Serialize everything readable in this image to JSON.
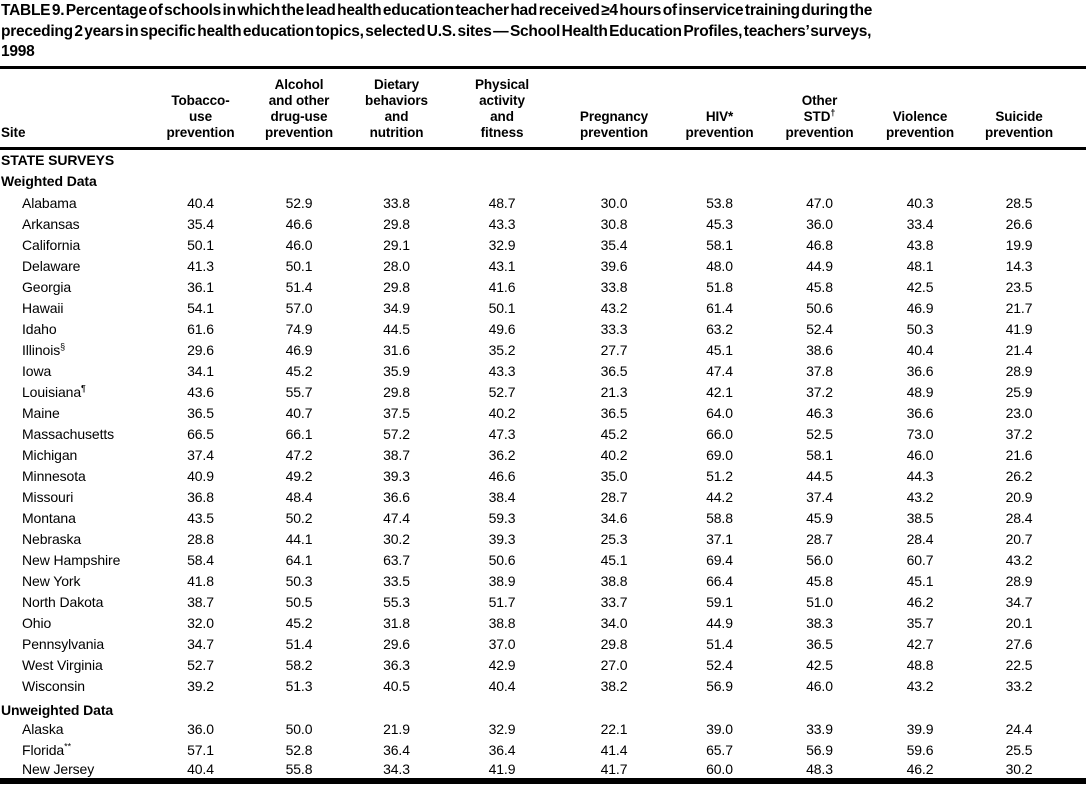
{
  "title_lines": [
    "TABLE 9. Percentage of schools in which the lead health education teacher had received ≥4 hours of inservice training during the",
    "preceding 2 years in specific health education topics, selected U.S. sites — School Health Education Profiles, teachers’ surveys,",
    "1998"
  ],
  "table": {
    "site_header": "Site",
    "columns": [
      {
        "lines": [
          "Tobacco-",
          "use",
          "prevention"
        ]
      },
      {
        "lines": [
          "Alcohol",
          "and other",
          "drug-use",
          "prevention"
        ]
      },
      {
        "lines": [
          "Dietary",
          "behaviors",
          "and",
          "nutrition"
        ]
      },
      {
        "lines": [
          "Physical",
          "activity",
          "and",
          "fitness"
        ]
      },
      {
        "lines": [
          "Pregnancy",
          "prevention"
        ]
      },
      {
        "lines": [
          "HIV*",
          "prevention"
        ]
      },
      {
        "lines": [
          "Other",
          "STD",
          "prevention"
        ],
        "sup": "†",
        "sup_line": 1
      },
      {
        "lines": [
          "Violence",
          "prevention"
        ]
      },
      {
        "lines": [
          "Suicide",
          "prevention"
        ]
      }
    ],
    "section_heading": "STATE SURVEYS",
    "groups": [
      {
        "heading": "Weighted Data",
        "rows": [
          {
            "site": "Alabama",
            "values": [
              "40.4",
              "52.9",
              "33.8",
              "48.7",
              "30.0",
              "53.8",
              "47.0",
              "40.3",
              "28.5"
            ]
          },
          {
            "site": "Arkansas",
            "values": [
              "35.4",
              "46.6",
              "29.8",
              "43.3",
              "30.8",
              "45.3",
              "36.0",
              "33.4",
              "26.6"
            ]
          },
          {
            "site": "California",
            "values": [
              "50.1",
              "46.0",
              "29.1",
              "32.9",
              "35.4",
              "58.1",
              "46.8",
              "43.8",
              "19.9"
            ]
          },
          {
            "site": "Delaware",
            "values": [
              "41.3",
              "50.1",
              "28.0",
              "43.1",
              "39.6",
              "48.0",
              "44.9",
              "48.1",
              "14.3"
            ]
          },
          {
            "site": "Georgia",
            "values": [
              "36.1",
              "51.4",
              "29.8",
              "41.6",
              "33.8",
              "51.8",
              "45.8",
              "42.5",
              "23.5"
            ]
          },
          {
            "site": "Hawaii",
            "values": [
              "54.1",
              "57.0",
              "34.9",
              "50.1",
              "43.2",
              "61.4",
              "50.6",
              "46.9",
              "21.7"
            ]
          },
          {
            "site": "Idaho",
            "values": [
              "61.6",
              "74.9",
              "44.5",
              "49.6",
              "33.3",
              "63.2",
              "52.4",
              "50.3",
              "41.9"
            ]
          },
          {
            "site": "Illinois",
            "sup": "§",
            "values": [
              "29.6",
              "46.9",
              "31.6",
              "35.2",
              "27.7",
              "45.1",
              "38.6",
              "40.4",
              "21.4"
            ]
          },
          {
            "site": "Iowa",
            "values": [
              "34.1",
              "45.2",
              "35.9",
              "43.3",
              "36.5",
              "47.4",
              "37.8",
              "36.6",
              "28.9"
            ]
          },
          {
            "site": "Louisiana",
            "sup": "¶",
            "values": [
              "43.6",
              "55.7",
              "29.8",
              "52.7",
              "21.3",
              "42.1",
              "37.2",
              "48.9",
              "25.9"
            ]
          },
          {
            "site": "Maine",
            "values": [
              "36.5",
              "40.7",
              "37.5",
              "40.2",
              "36.5",
              "64.0",
              "46.3",
              "36.6",
              "23.0"
            ]
          },
          {
            "site": "Massachusetts",
            "values": [
              "66.5",
              "66.1",
              "57.2",
              "47.3",
              "45.2",
              "66.0",
              "52.5",
              "73.0",
              "37.2"
            ]
          },
          {
            "site": "Michigan",
            "values": [
              "37.4",
              "47.2",
              "38.7",
              "36.2",
              "40.2",
              "69.0",
              "58.1",
              "46.0",
              "21.6"
            ]
          },
          {
            "site": "Minnesota",
            "values": [
              "40.9",
              "49.2",
              "39.3",
              "46.6",
              "35.0",
              "51.2",
              "44.5",
              "44.3",
              "26.2"
            ]
          },
          {
            "site": "Missouri",
            "values": [
              "36.8",
              "48.4",
              "36.6",
              "38.4",
              "28.7",
              "44.2",
              "37.4",
              "43.2",
              "20.9"
            ]
          },
          {
            "site": "Montana",
            "values": [
              "43.5",
              "50.2",
              "47.4",
              "59.3",
              "34.6",
              "58.8",
              "45.9",
              "38.5",
              "28.4"
            ]
          },
          {
            "site": "Nebraska",
            "values": [
              "28.8",
              "44.1",
              "30.2",
              "39.3",
              "25.3",
              "37.1",
              "28.7",
              "28.4",
              "20.7"
            ]
          },
          {
            "site": "New Hampshire",
            "values": [
              "58.4",
              "64.1",
              "63.7",
              "50.6",
              "45.1",
              "69.4",
              "56.0",
              "60.7",
              "43.2"
            ]
          },
          {
            "site": "New York",
            "values": [
              "41.8",
              "50.3",
              "33.5",
              "38.9",
              "38.8",
              "66.4",
              "45.8",
              "45.1",
              "28.9"
            ]
          },
          {
            "site": "North Dakota",
            "values": [
              "38.7",
              "50.5",
              "55.3",
              "51.7",
              "33.7",
              "59.1",
              "51.0",
              "46.2",
              "34.7"
            ]
          },
          {
            "site": "Ohio",
            "values": [
              "32.0",
              "45.2",
              "31.8",
              "38.8",
              "34.0",
              "44.9",
              "38.3",
              "35.7",
              "20.1"
            ]
          },
          {
            "site": "Pennsylvania",
            "values": [
              "34.7",
              "51.4",
              "29.6",
              "37.0",
              "29.8",
              "51.4",
              "36.5",
              "42.7",
              "27.6"
            ]
          },
          {
            "site": "West Virginia",
            "values": [
              "52.7",
              "58.2",
              "36.3",
              "42.9",
              "27.0",
              "52.4",
              "42.5",
              "48.8",
              "22.5"
            ]
          },
          {
            "site": "Wisconsin",
            "values": [
              "39.2",
              "51.3",
              "40.5",
              "40.4",
              "38.2",
              "56.9",
              "46.0",
              "43.2",
              "33.2"
            ]
          }
        ]
      },
      {
        "heading": "Unweighted Data",
        "rows": [
          {
            "site": "Alaska",
            "values": [
              "36.0",
              "50.0",
              "21.9",
              "32.9",
              "22.1",
              "39.0",
              "33.9",
              "39.9",
              "24.4"
            ]
          },
          {
            "site": "Florida",
            "sup": "**",
            "values": [
              "57.1",
              "52.8",
              "36.4",
              "36.4",
              "41.4",
              "65.7",
              "56.9",
              "59.6",
              "25.5"
            ]
          },
          {
            "site": "New Jersey",
            "values": [
              "40.4",
              "55.8",
              "34.3",
              "41.9",
              "41.7",
              "60.0",
              "48.3",
              "46.2",
              "30.2"
            ]
          }
        ]
      }
    ]
  }
}
